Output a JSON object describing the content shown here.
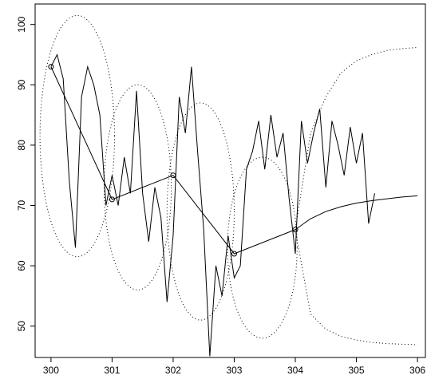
{
  "chart_data": {
    "type": "line",
    "xlim": [
      299.74,
      306.13
    ],
    "ylim": [
      44.8,
      103.4
    ],
    "xticks": [
      300,
      301,
      302,
      303,
      304,
      305,
      306
    ],
    "yticks": [
      50,
      60,
      70,
      80,
      90,
      100
    ],
    "series": [
      {
        "color": "#000000",
        "style": "solid",
        "x": [
          300.0,
          300.1,
          300.2,
          300.3,
          300.4,
          300.5,
          300.6,
          300.7,
          300.8,
          300.9,
          301.0,
          301.1,
          301.2,
          301.3,
          301.4,
          301.5,
          301.6,
          301.7,
          301.8,
          301.9,
          302.0,
          302.1,
          302.2,
          302.3,
          302.4,
          302.5,
          302.6,
          302.7,
          302.8,
          302.9,
          303.0,
          303.1,
          303.2,
          303.3,
          303.4,
          303.5,
          303.6,
          303.7,
          303.8,
          303.9,
          304.0,
          304.1,
          304.2,
          304.3,
          304.4,
          304.5,
          304.6,
          304.7,
          304.8,
          304.9,
          305.0,
          305.1,
          305.2,
          305.3
        ],
        "values": [
          93,
          95,
          91,
          74,
          63,
          88,
          93,
          90,
          85,
          70,
          75,
          70,
          78,
          72,
          89,
          72,
          64,
          73,
          68,
          54,
          65,
          88,
          82,
          93,
          79,
          66,
          45,
          60,
          55,
          65,
          58,
          60,
          76,
          79,
          84,
          76,
          85,
          78,
          82,
          71,
          62,
          84,
          77,
          82,
          86,
          73,
          84,
          80,
          75,
          83,
          77,
          82,
          67,
          72
        ]
      },
      {
        "color": "#000000",
        "style": "solid",
        "markers": true,
        "x": [
          300,
          301,
          302,
          303,
          304
        ],
        "values": [
          93,
          71,
          75,
          62,
          66
        ]
      },
      {
        "color": "#000000",
        "style": "solid",
        "x": [
          304,
          304.25,
          304.5,
          304.75,
          305,
          305.25,
          305.5,
          305.75,
          306
        ],
        "values": [
          66,
          67.8,
          69.0,
          69.8,
          70.4,
          70.8,
          71.1,
          71.4,
          71.6
        ]
      },
      {
        "color": "#000000",
        "style": "dotted",
        "x": [
          304,
          304.25,
          304.5,
          304.75,
          305,
          305.25,
          305.5,
          305.75,
          306
        ],
        "values": [
          66,
          82,
          88,
          92,
          94,
          95,
          95.7,
          96,
          96.2
        ]
      },
      {
        "color": "#000000",
        "style": "dotted",
        "x": [
          304,
          304.25,
          304.5,
          304.75,
          305,
          305.25,
          305.5,
          305.75,
          306
        ],
        "values": [
          66,
          52,
          49.5,
          48.3,
          47.7,
          47.3,
          47.1,
          47,
          46.9
        ]
      }
    ],
    "ellipses": [
      {
        "cx": 300.43,
        "cy": 81.5,
        "rx": 0.61,
        "ry": 20
      },
      {
        "cx": 301.42,
        "cy": 73,
        "rx": 0.55,
        "ry": 17
      },
      {
        "cx": 302.45,
        "cy": 69,
        "rx": 0.55,
        "ry": 18
      },
      {
        "cx": 303.46,
        "cy": 63,
        "rx": 0.57,
        "ry": 15
      }
    ]
  }
}
